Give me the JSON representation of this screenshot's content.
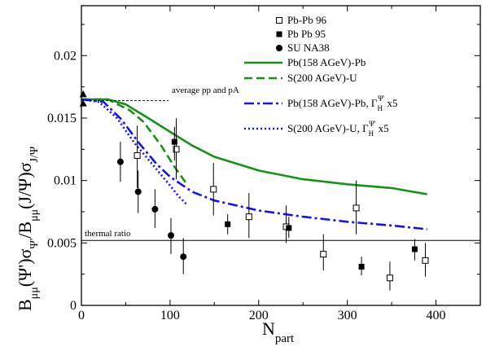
{
  "chart_data": {
    "type": "scatter",
    "xlabel": "N",
    "xlabel_sub": "part",
    "ylabel": {
      "b1": "B",
      "b1_sub": "μμ",
      "mid": "(Ψ')σ",
      "mid_sub": "Ψ'",
      "slash": "/B",
      "b2_sub": "μμ",
      "end": "(J/Ψ)σ",
      "end_sub": "J/Ψ"
    },
    "xlim": [
      0,
      450
    ],
    "ylim": [
      0,
      0.024
    ],
    "x_ticks": [
      0,
      100,
      200,
      300,
      400
    ],
    "x_tick_labels": [
      "0",
      "100",
      "200",
      "300",
      "400"
    ],
    "y_ticks": [
      0,
      0.005,
      0.01,
      0.015,
      0.02
    ],
    "y_tick_labels": [
      "0",
      "0.005",
      "0.01",
      "0.015",
      "0.02"
    ],
    "grid": false,
    "legend_position": "top-right",
    "annotations": {
      "average_label": "average pp and pA",
      "average_value": 0.0164,
      "thermal_label": "thermal ratio",
      "thermal_value": 0.0052
    },
    "reference_points": [
      {
        "x": 2,
        "y": 0.0169
      },
      {
        "x": 2,
        "y": 0.0162
      }
    ],
    "series": [
      {
        "name": "Pb-Pb 96",
        "kind": "points",
        "marker": "open-square",
        "points": [
          {
            "x": 63,
            "y": 0.012,
            "lo": 0.0094,
            "hi": 0.0144
          },
          {
            "x": 107,
            "y": 0.0125,
            "lo": 0.0101,
            "hi": 0.015
          },
          {
            "x": 149,
            "y": 0.0093,
            "lo": 0.0072,
            "hi": 0.0114
          },
          {
            "x": 189,
            "y": 0.0071,
            "lo": 0.0054,
            "hi": 0.009
          },
          {
            "x": 231,
            "y": 0.0063,
            "lo": 0.005,
            "hi": 0.008
          },
          {
            "x": 273,
            "y": 0.0041,
            "lo": 0.0028,
            "hi": 0.0057
          },
          {
            "x": 310,
            "y": 0.0078,
            "lo": 0.0057,
            "hi": 0.01
          },
          {
            "x": 348,
            "y": 0.0022,
            "lo": 0.0012,
            "hi": 0.0035
          },
          {
            "x": 388,
            "y": 0.0036,
            "lo": 0.0023,
            "hi": 0.005
          }
        ]
      },
      {
        "name": "Pb Pb 95",
        "kind": "points",
        "marker": "filled-square",
        "points": [
          {
            "x": 105,
            "y": 0.0131,
            "lo": 0.0116,
            "hi": 0.0143
          },
          {
            "x": 165,
            "y": 0.0065,
            "lo": 0.0057,
            "hi": 0.0073
          },
          {
            "x": 234,
            "y": 0.0062,
            "lo": 0.0054,
            "hi": 0.0071
          },
          {
            "x": 316,
            "y": 0.0031,
            "lo": 0.0024,
            "hi": 0.0039
          },
          {
            "x": 376,
            "y": 0.0045,
            "lo": 0.0036,
            "hi": 0.0053
          }
        ]
      },
      {
        "name": "SU NA38",
        "kind": "points",
        "marker": "filled-circle",
        "points": [
          {
            "x": 44,
            "y": 0.0115,
            "lo": 0.0099,
            "hi": 0.0131
          },
          {
            "x": 64,
            "y": 0.0091,
            "lo": 0.0074,
            "hi": 0.0108
          },
          {
            "x": 83,
            "y": 0.0077,
            "lo": 0.0062,
            "hi": 0.0093
          },
          {
            "x": 101,
            "y": 0.0056,
            "lo": 0.0041,
            "hi": 0.007
          },
          {
            "x": 115,
            "y": 0.0039,
            "lo": 0.0025,
            "hi": 0.0054
          }
        ]
      },
      {
        "name": "Pb(158 AGeV)-Pb",
        "kind": "line",
        "dash": "solid",
        "points": [
          [
            0,
            0.0165
          ],
          [
            30,
            0.0165
          ],
          [
            50,
            0.0161
          ],
          [
            80,
            0.0148
          ],
          [
            100,
            0.0139
          ],
          [
            125,
            0.0128
          ],
          [
            150,
            0.0119
          ],
          [
            200,
            0.0108
          ],
          [
            250,
            0.0101
          ],
          [
            300,
            0.0097
          ],
          [
            350,
            0.0094
          ],
          [
            390,
            0.0089
          ]
        ]
      },
      {
        "name": "S(200 AGeV)-U",
        "kind": "line",
        "dash": "dash",
        "points": [
          [
            0,
            0.0165
          ],
          [
            30,
            0.0165
          ],
          [
            55,
            0.0156
          ],
          [
            70,
            0.0147
          ],
          [
            90,
            0.0128
          ],
          [
            105,
            0.0111
          ],
          [
            118,
            0.0098
          ]
        ]
      },
      {
        "name": "Pb(158 AGeV)-Pb, Γ_H^Ψ' x5",
        "label_main": "Pb(158 AGeV)-Pb, Γ",
        "label_sub": "H",
        "label_sup": "Ψ'",
        "label_tail": " x5",
        "kind": "line",
        "dash": "dashdot",
        "points": [
          [
            0,
            0.0165
          ],
          [
            25,
            0.0163
          ],
          [
            45,
            0.0149
          ],
          [
            65,
            0.013
          ],
          [
            85,
            0.0113
          ],
          [
            100,
            0.0103
          ],
          [
            125,
            0.0091
          ],
          [
            150,
            0.0084
          ],
          [
            200,
            0.0076
          ],
          [
            250,
            0.0071
          ],
          [
            300,
            0.0067
          ],
          [
            350,
            0.0064
          ],
          [
            390,
            0.0061
          ]
        ]
      },
      {
        "name": "S(200 AGeV)-U, Γ_H^Ψ' x5",
        "label_main": "S(200 AGeV)-U,   Γ",
        "label_sub": "H",
        "label_sup": "Ψ'",
        "label_tail": " x5",
        "kind": "line",
        "dash": "dot",
        "points": [
          [
            0,
            0.0165
          ],
          [
            20,
            0.0163
          ],
          [
            40,
            0.015
          ],
          [
            60,
            0.013
          ],
          [
            80,
            0.0113
          ],
          [
            100,
            0.0096
          ],
          [
            110,
            0.0087
          ],
          [
            120,
            0.008
          ]
        ]
      }
    ],
    "colors": {
      "pbpb_solid": "#1a8f1a",
      "su_dashed": "#1a8f1a",
      "pbpb_dashdot": "#1515e0",
      "su_dotted": "#1515e0",
      "black": "#000000"
    }
  }
}
